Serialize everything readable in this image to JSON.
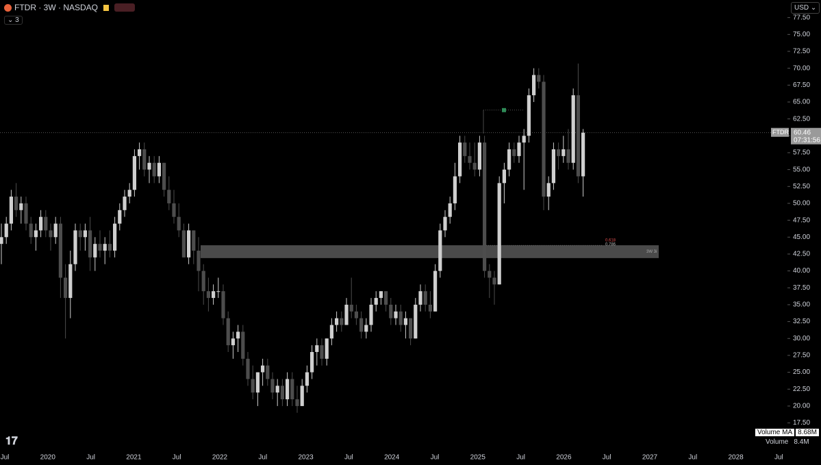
{
  "chart_data": {
    "type": "candlestick",
    "symbol": "FTDR · 3W · NASDAQ",
    "indicator_count": "3",
    "currency": "USD",
    "ticker_tag": "FTDR",
    "last_price": 60.46,
    "countdown": "07:31:56",
    "up_color": "#cfcfcf",
    "down_color": "#4d4d4d",
    "ylim": [
      13.2,
      80.1
    ],
    "yticks": [
      {
        "value": 17.5,
        "label": "17.50"
      },
      {
        "value": 20,
        "label": "20.00"
      },
      {
        "value": 22.5,
        "label": "22.50"
      },
      {
        "value": 25,
        "label": "25.00"
      },
      {
        "value": 27.5,
        "label": "27.50"
      },
      {
        "value": 30,
        "label": "30.00"
      },
      {
        "value": 32.5,
        "label": "32.50"
      },
      {
        "value": 35,
        "label": "35.00"
      },
      {
        "value": 37.5,
        "label": "37.50"
      },
      {
        "value": 40,
        "label": "40.00"
      },
      {
        "value": 42.5,
        "label": "42.50"
      },
      {
        "value": 45,
        "label": "45.00"
      },
      {
        "value": 47.5,
        "label": "47.50"
      },
      {
        "value": 50,
        "label": "50.00"
      },
      {
        "value": 52.5,
        "label": "52.50"
      },
      {
        "value": 55,
        "label": "55.00"
      },
      {
        "value": 57.5,
        "label": "57.50"
      },
      {
        "value": 60,
        "label": "60.00"
      },
      {
        "value": 62.5,
        "label": "62.50"
      },
      {
        "value": 65,
        "label": "65.00"
      },
      {
        "value": 67.5,
        "label": "67.50"
      },
      {
        "value": 70,
        "label": "70.00"
      },
      {
        "value": 72.5,
        "label": "72.50"
      },
      {
        "value": 75,
        "label": "75.00"
      },
      {
        "value": 77.5,
        "label": "77.50"
      }
    ],
    "time_labels": [
      "Jul",
      "2020",
      "Jul",
      "2021",
      "Jul",
      "2022",
      "Jul",
      "2023",
      "Jul",
      "2024",
      "Jul",
      "2025",
      "Jul",
      "2026",
      "Jul",
      "2027",
      "Jul",
      "2028",
      "Jul"
    ],
    "zone": {
      "low": 41.9,
      "high": 43.8,
      "labels": [
        "0.618",
        "0.786",
        "3W 3i"
      ]
    },
    "marker_level": 63.8,
    "volume_ma_label": "Volume MA",
    "volume_ma": "8.68M",
    "volume_label": "Volume",
    "volume": "8.4M",
    "candles": {
      "open": [
        44,
        45,
        47,
        51,
        49,
        50,
        47,
        45,
        46,
        48,
        46,
        45,
        47,
        39,
        36,
        41,
        46,
        45,
        46,
        42,
        44,
        43,
        44,
        43,
        47,
        49,
        51,
        52,
        57,
        58,
        55,
        56,
        54,
        56,
        52,
        50,
        48,
        46,
        42,
        46,
        43,
        40,
        37,
        36,
        37,
        37,
        33,
        29,
        30,
        31,
        27,
        24,
        22,
        25,
        26,
        24,
        22,
        23,
        21,
        24,
        21,
        20,
        23,
        25,
        28,
        29,
        27,
        30,
        32,
        33,
        32,
        35,
        34,
        33,
        31,
        32,
        35,
        36,
        37,
        35,
        33,
        34,
        32,
        33,
        30,
        35,
        37,
        35,
        34,
        40,
        46,
        48,
        50,
        54,
        59,
        57,
        56,
        55,
        59,
        40,
        39,
        38,
        53,
        55,
        58,
        57,
        59,
        60,
        66,
        69,
        68,
        51,
        53,
        58,
        57,
        58,
        56,
        66,
        54
      ],
      "high": [
        47,
        48,
        52,
        53,
        51,
        51,
        48,
        47,
        49,
        49,
        47,
        48,
        48,
        41,
        43,
        47,
        47,
        47,
        48,
        45,
        46,
        45,
        46,
        48,
        50,
        52,
        53,
        58,
        59,
        59,
        57,
        57,
        57,
        56,
        54,
        52,
        50,
        47,
        47,
        46,
        45,
        41,
        39,
        38,
        39,
        38,
        34,
        31,
        32,
        32,
        28,
        26,
        25,
        27,
        27,
        25,
        24,
        24,
        25,
        25,
        23,
        24,
        26,
        29,
        30,
        30,
        30,
        33,
        34,
        34,
        36,
        39,
        35,
        34,
        33,
        36,
        37,
        37,
        37,
        36,
        35,
        35,
        34,
        33,
        36,
        38,
        38,
        37,
        41,
        47,
        49,
        51,
        56,
        60,
        60,
        59,
        59,
        60,
        60,
        41,
        40,
        54,
        56,
        59,
        59,
        60,
        61,
        67,
        70,
        70,
        69,
        54,
        59,
        59,
        60,
        61,
        67,
        70.7,
        61
      ],
      "low": [
        41,
        44,
        46,
        48,
        47,
        46,
        44,
        43,
        45,
        45,
        43,
        44,
        36,
        30,
        33,
        40,
        43,
        43,
        40,
        40,
        42,
        41,
        42,
        42,
        46,
        48,
        50,
        51,
        55,
        54,
        53,
        53,
        53,
        51,
        49,
        47,
        45,
        42,
        41,
        41,
        37,
        35,
        34,
        35,
        36,
        32,
        28,
        27,
        28,
        26,
        23,
        21,
        20,
        23,
        23,
        21,
        20,
        20,
        20,
        20,
        19,
        20,
        22,
        24,
        26,
        26,
        26,
        29,
        31,
        31,
        32,
        33,
        32,
        30,
        30,
        31,
        34,
        35,
        34,
        32,
        32,
        31,
        30,
        29,
        30,
        34,
        34,
        33,
        34,
        39,
        45,
        47,
        49,
        53,
        56,
        55,
        54,
        54,
        39,
        36,
        35,
        38,
        50,
        54,
        56,
        56,
        52,
        59,
        65,
        67,
        49,
        49,
        52,
        55,
        56,
        55,
        55,
        53,
        51
      ],
      "close": [
        45,
        47,
        51,
        49,
        50,
        47,
        45,
        46,
        48,
        46,
        45,
        47,
        39,
        36,
        41,
        46,
        45,
        46,
        42,
        44,
        43,
        44,
        43,
        47,
        49,
        51,
        52,
        57,
        58,
        55,
        56,
        54,
        56,
        52,
        50,
        48,
        46,
        42,
        46,
        43,
        40,
        37,
        36,
        37,
        37,
        33,
        29,
        30,
        31,
        27,
        24,
        22,
        25,
        26,
        24,
        22,
        23,
        21,
        24,
        21,
        20,
        23,
        25,
        28,
        29,
        27,
        30,
        32,
        33,
        32,
        35,
        34,
        33,
        31,
        32,
        35,
        36,
        37,
        35,
        33,
        34,
        32,
        33,
        30,
        35,
        37,
        35,
        34,
        40,
        46,
        48,
        50,
        54,
        59,
        57,
        56,
        55,
        59,
        40,
        39,
        38,
        53,
        55,
        58,
        57,
        59,
        60,
        66,
        69,
        68,
        51,
        53,
        58,
        57,
        58,
        56,
        66,
        54,
        60.46
      ]
    }
  }
}
